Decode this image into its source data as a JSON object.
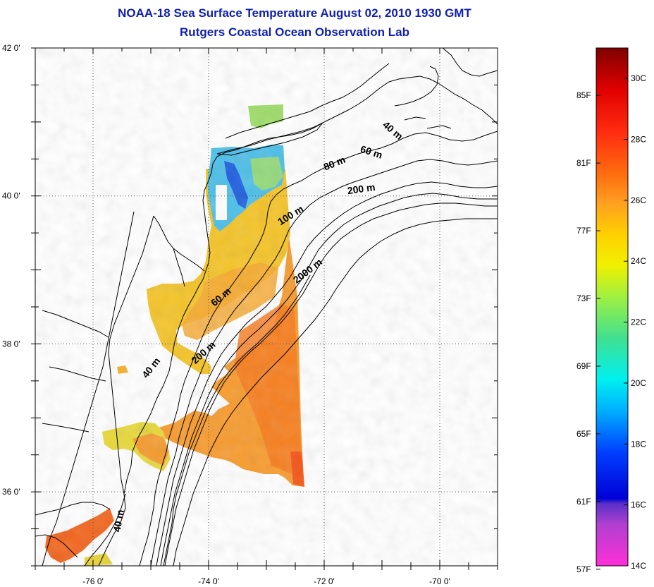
{
  "title": {
    "line1": "NOAA-18 Sea Surface Temperature August 02, 2010 1930 GMT",
    "line2": "Rutgers Coastal Ocean Observation Lab"
  },
  "map": {
    "lat_ticks": [
      {
        "value": 42,
        "label": "42 0'"
      },
      {
        "value": 40,
        "label": "40 0'"
      },
      {
        "value": 38,
        "label": "38 0'"
      },
      {
        "value": 36,
        "label": "36 0'"
      }
    ],
    "lon_ticks": [
      {
        "value": -76,
        "label": "-76 0'"
      },
      {
        "value": -74,
        "label": "-74 0'"
      },
      {
        "value": -72,
        "label": "-72 0'"
      },
      {
        "value": -70,
        "label": "-70 0'"
      }
    ],
    "lat_range": [
      35.0,
      42.0
    ],
    "lon_range": [
      -77.0,
      -69.0
    ],
    "grid": "dotted",
    "contour_labels": [
      {
        "text": "40 m",
        "lon": -70.85,
        "lat": 40.85
      },
      {
        "text": "60 m",
        "lon": -71.2,
        "lat": 40.55
      },
      {
        "text": "80 m",
        "lon": -71.8,
        "lat": 40.4
      },
      {
        "text": "200 m",
        "lon": -71.35,
        "lat": 40.05
      },
      {
        "text": "100 m",
        "lon": -72.55,
        "lat": 39.7
      },
      {
        "text": "2000 m",
        "lon": -72.25,
        "lat": 38.95
      },
      {
        "text": "60 m",
        "lon": -73.75,
        "lat": 38.6
      },
      {
        "text": "200 m",
        "lon": -74.05,
        "lat": 37.85
      },
      {
        "text": "40 m",
        "lon": -74.95,
        "lat": 37.65
      },
      {
        "text": "40 m",
        "lon": -75.5,
        "lat": 35.6
      }
    ]
  },
  "colorbar": {
    "fahrenheit_labels": [
      "85F",
      "81F",
      "77F",
      "73F",
      "69F",
      "65F",
      "61F",
      "57F"
    ],
    "celsius_labels": [
      "30C",
      "28C",
      "26C",
      "24C",
      "22C",
      "20C",
      "18C",
      "16C",
      "14C"
    ],
    "range_c": [
      14,
      31
    ],
    "colors": [
      "#ff2fd8",
      "#8a3fd0",
      "#0000e0",
      "#0050ff",
      "#00b0ff",
      "#00f0f0",
      "#40e0a0",
      "#a0f040",
      "#f0f000",
      "#ffd000",
      "#ff9020",
      "#ff5a10",
      "#ff1010",
      "#e00000",
      "#800000"
    ]
  }
}
